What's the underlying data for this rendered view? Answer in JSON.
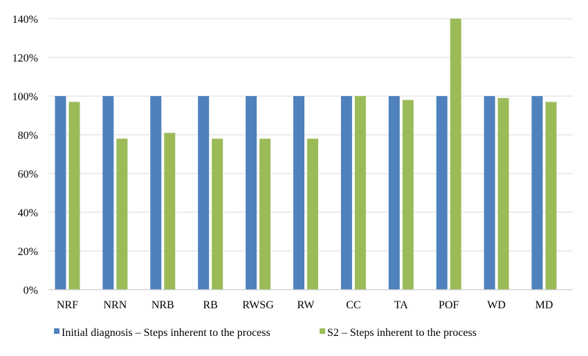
{
  "chart_data": {
    "type": "bar",
    "title": "",
    "xlabel": "",
    "ylabel": "",
    "categories": [
      "NRF",
      "NRN",
      "NRB",
      "RB",
      "RWSG",
      "RW",
      "CC",
      "TA",
      "POF",
      "WD",
      "MD"
    ],
    "series": [
      {
        "name": "Initial diagnosis – Steps inherent to the process",
        "color": "#4f81bd",
        "values": [
          100,
          100,
          100,
          100,
          100,
          100,
          100,
          100,
          100,
          100,
          100
        ]
      },
      {
        "name": "S2 – Steps inherent to the process",
        "color": "#9bbb59",
        "values": [
          97,
          78,
          81,
          78,
          78,
          78,
          100,
          98,
          140,
          99,
          97
        ]
      }
    ],
    "ylim": [
      0,
      140
    ],
    "yticks": [
      "0%",
      "20%",
      "40%",
      "60%",
      "80%",
      "100%",
      "120%",
      "140%"
    ],
    "grid": true,
    "legend": "bottom"
  }
}
